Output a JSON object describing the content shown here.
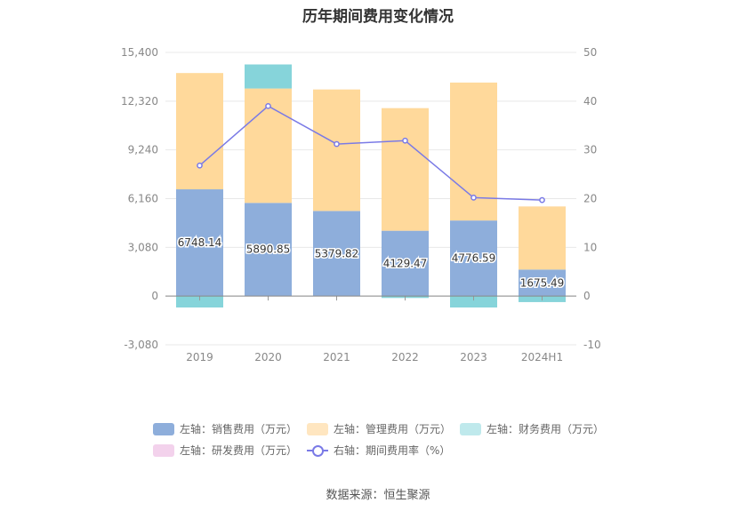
{
  "colors": {
    "sales": "#8eaedb",
    "admin": "#ffd99b",
    "finance": "#86d4da",
    "rnd": "#f3d2ec",
    "rate": "#7a7ae6"
  },
  "legend": [
    {
      "key": "sales",
      "label": "左轴：销售费用（万元）"
    },
    {
      "key": "admin",
      "label": "左轴：管理费用（万元）"
    },
    {
      "key": "finance",
      "label": "左轴：财务费用（万元）"
    },
    {
      "key": "rnd",
      "label": "左轴：研发费用（万元）"
    },
    {
      "key": "rate",
      "label": "右轴：期间费用率（%）"
    }
  ],
  "source": "数据来源：恒生聚源",
  "chart_data": {
    "type": "bar",
    "title": "历年期间费用变化情况",
    "categories": [
      "2019",
      "2020",
      "2021",
      "2022",
      "2023",
      "2024H1"
    ],
    "left_axis": {
      "ticks": [
        "15,400",
        "12,320",
        "9,240",
        "6,160",
        "3,080",
        "0",
        "-3,080"
      ],
      "ylim": [
        -3080,
        15400
      ]
    },
    "right_axis": {
      "ticks": [
        "50",
        "40",
        "30",
        "20",
        "10",
        "0",
        "-10"
      ],
      "ylim": [
        -10,
        50
      ]
    },
    "series": [
      {
        "name": "左轴：销售费用（万元）",
        "key": "sales",
        "values": [
          6748.14,
          5890.85,
          5379.82,
          4129.47,
          4776.59,
          1675.49
        ]
      },
      {
        "name": "左轴：管理费用（万元）",
        "key": "admin",
        "values": [
          7350,
          7230,
          7680,
          7750,
          8720,
          3990
        ]
      },
      {
        "name": "左轴：财务费用（万元）",
        "key": "finance",
        "values": [
          -720,
          1520,
          0,
          -120,
          -720,
          -380
        ]
      },
      {
        "name": "左轴：研发费用（万元）",
        "key": "rnd",
        "values": [
          0,
          0,
          0,
          0,
          0,
          0
        ]
      },
      {
        "name": "右轴：期间费用率（%）",
        "key": "rate",
        "axis": "right",
        "type": "line",
        "values": [
          26.8,
          39.0,
          31.2,
          31.9,
          20.2,
          19.7
        ]
      }
    ],
    "data_labels": [
      "6748.14",
      "5890.85",
      "5379.82",
      "4129.47",
      "4776.59",
      "1675.49"
    ],
    "grid": true,
    "legend_position": "bottom"
  }
}
